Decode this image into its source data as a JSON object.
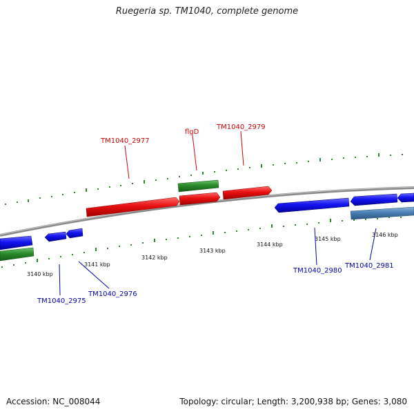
{
  "title": "Ruegeria sp. TM1040, complete genome",
  "footer": {
    "accession": "Accession: NC_008044",
    "summary": "Topology: circular; Length: 3,200,938 bp; Genes: 3,080"
  },
  "colors": {
    "forward_cds": "#e01010",
    "reverse_cds": "#1010e0",
    "forward_rna": "#2a8a2a",
    "reverse_rna": "#2a8a2a",
    "reverse_other": "#4a7fb5",
    "backbone": "#8a8a8a",
    "forward_label": "#cc0000",
    "reverse_label": "#0000aa"
  },
  "scale": {
    "ticks": [
      "3140 kbp",
      "3141 kbp",
      "3142 kbp",
      "3143 kbp",
      "3144 kbp",
      "3145 kbp",
      "3146 kbp"
    ]
  },
  "gene_labels": {
    "forward": [
      "TM1040_2977",
      "flgD",
      "TM1040_2979"
    ],
    "reverse": [
      "TM1040_2975",
      "TM1040_2976",
      "TM1040_2980",
      "TM1040_2981"
    ]
  }
}
